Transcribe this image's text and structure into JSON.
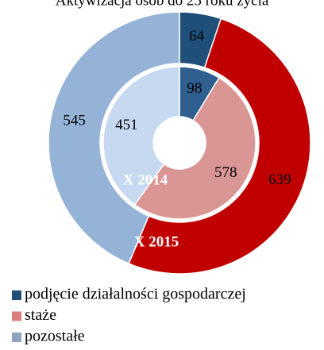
{
  "chart_data": {
    "type": "donut",
    "title": "Aktywizacja osób do 25 roku życia",
    "categories": [
      "podjęcie działalności gospodarczej",
      "staże",
      "pozostałe"
    ],
    "series": [
      {
        "name": "X 2015",
        "colors": [
          "#1f4e79",
          "#c00000",
          "#95b3d7"
        ],
        "values": [
          64,
          639,
          545
        ]
      },
      {
        "name": "X 2014",
        "colors": [
          "#2e5f8f",
          "#d99694",
          "#c6d9f0"
        ],
        "values": [
          98,
          578,
          451
        ]
      }
    ],
    "legend_colors": [
      "#1f4e79",
      "#d9807e",
      "#8ea3bd"
    ]
  }
}
